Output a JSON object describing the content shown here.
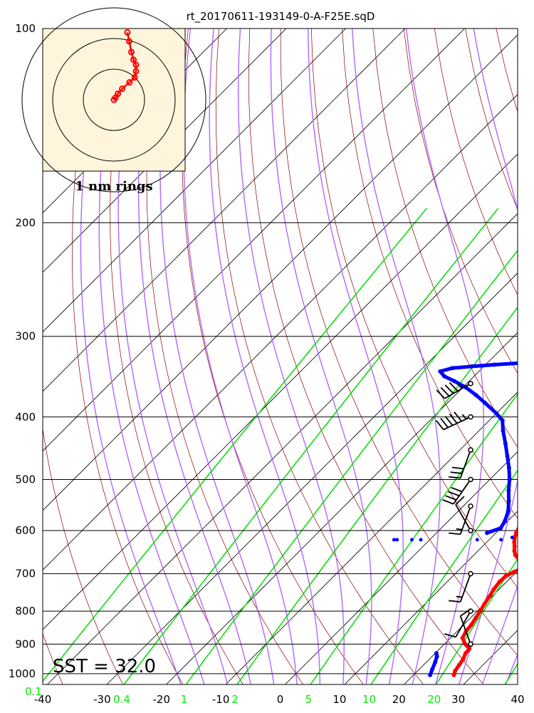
{
  "title": "rt_20170611-193149-0-A-F25E.sqD",
  "inset_label": "1 nm rings",
  "sst_label": "SST = 32.0",
  "colors": {
    "temperature": "#ff0000",
    "dewpoint": "#0000ff",
    "dry_adiabat": "#8b0000",
    "moist_adiabat": "#b266ff",
    "mixing_ratio": "#00dd00",
    "isotherm": "#000000",
    "inset_bg": "#fff5dc"
  },
  "chart_data": {
    "type": "line",
    "title": "rt_20170611-193149-0-A-F25E.sqD",
    "y_scale": "log",
    "ylim": [
      1050,
      100
    ],
    "xlim": [
      -40,
      40
    ],
    "pressure_ticks": [
      "100",
      "200",
      "300",
      "400",
      "500",
      "600",
      "700",
      "800",
      "900",
      "1000"
    ],
    "temperature_ticks": [
      "-40",
      "-30",
      "-20",
      "-10",
      "0",
      "10",
      "20",
      "30",
      "40"
    ],
    "mixing_ratio_labels": [
      "0.1",
      "0.4",
      "1",
      "2",
      "5",
      "10",
      "20"
    ],
    "series": [
      {
        "key": "temperature",
        "pressure": [
          1005,
          990,
          970,
          950,
          930,
          915,
          900,
          880,
          860,
          840,
          820,
          800,
          780,
          760,
          740,
          720,
          705,
          695,
          685,
          675,
          665,
          655,
          645,
          635,
          625,
          615,
          605,
          590,
          570,
          550,
          530,
          510,
          490,
          470,
          450,
          430,
          410,
          395,
          380,
          365,
          350,
          340
        ],
        "temperature": [
          26.8,
          26.3,
          26.0,
          25.7,
          25.1,
          25.0,
          23.5,
          22.0,
          21.5,
          21.3,
          20.9,
          20.5,
          20.0,
          19.6,
          19.1,
          18.8,
          18.9,
          19.6,
          20.5,
          19.9,
          18.3,
          17.0,
          16.1,
          15.4,
          14.6,
          13.9,
          13.4,
          12.8,
          11.5,
          10.3,
          8.6,
          7.2,
          5.5,
          3.8,
          1.5,
          -0.8,
          -2.7,
          -4.8,
          -6.7,
          -8.6,
          -10.9,
          -12.6
        ]
      },
      {
        "key": "dewpoint",
        "pressure": [
          1005,
          985,
          960,
          940,
          930,
          605,
          595,
          580,
          560,
          540,
          520,
          500,
          480,
          460,
          440,
          420,
          405,
          395,
          380,
          370,
          360,
          352,
          346,
          340,
          336,
          334,
          332,
          330
        ],
        "temperature": [
          22.8,
          22.2,
          21.5,
          20.8,
          20.2,
          8.5,
          10.0,
          9.5,
          8.4,
          6.8,
          5.0,
          3.3,
          1.3,
          -1.0,
          -3.4,
          -6.0,
          -7.8,
          -10.0,
          -13.8,
          -16.5,
          -19.5,
          -22.5,
          -25.0,
          -26.5,
          -25.0,
          -22.0,
          -18.5,
          -14.5
        ]
      },
      {
        "key": "dewpoint_scatter",
        "pressure": [
          620,
          620,
          620,
          620,
          620,
          620,
          615
        ],
        "temperature": [
          -5.5,
          -6.0,
          -3.0,
          -1.5,
          8.0,
          12.0,
          13.5
        ]
      }
    ],
    "wind_barbs": [
      {
        "pressure": 355,
        "direction_deg": 240,
        "speed_kt": 45
      },
      {
        "pressure": 400,
        "direction_deg": 245,
        "speed_kt": 55
      },
      {
        "pressure": 450,
        "direction_deg": 200,
        "speed_kt": 30
      },
      {
        "pressure": 500,
        "direction_deg": 215,
        "speed_kt": 40
      },
      {
        "pressure": 550,
        "direction_deg": 200,
        "speed_kt": 15
      },
      {
        "pressure": 600,
        "direction_deg": 330,
        "speed_kt": 10
      },
      {
        "pressure": 700,
        "direction_deg": 200,
        "speed_kt": 15
      },
      {
        "pressure": 800,
        "direction_deg": 210,
        "speed_kt": 10
      },
      {
        "pressure": 900,
        "direction_deg": 340,
        "speed_kt": 10
      }
    ],
    "hodograph": {
      "ring_spacing_nm": 1,
      "u": [
        0,
        0.05,
        0.13,
        0.27,
        0.51,
        0.68,
        0.72,
        0.72,
        0.64,
        0.57,
        0.5,
        0.44
      ],
      "v": [
        0,
        0.07,
        0.2,
        0.36,
        0.57,
        0.73,
        0.93,
        1.14,
        1.31,
        1.56,
        1.91,
        2.2
      ]
    }
  }
}
